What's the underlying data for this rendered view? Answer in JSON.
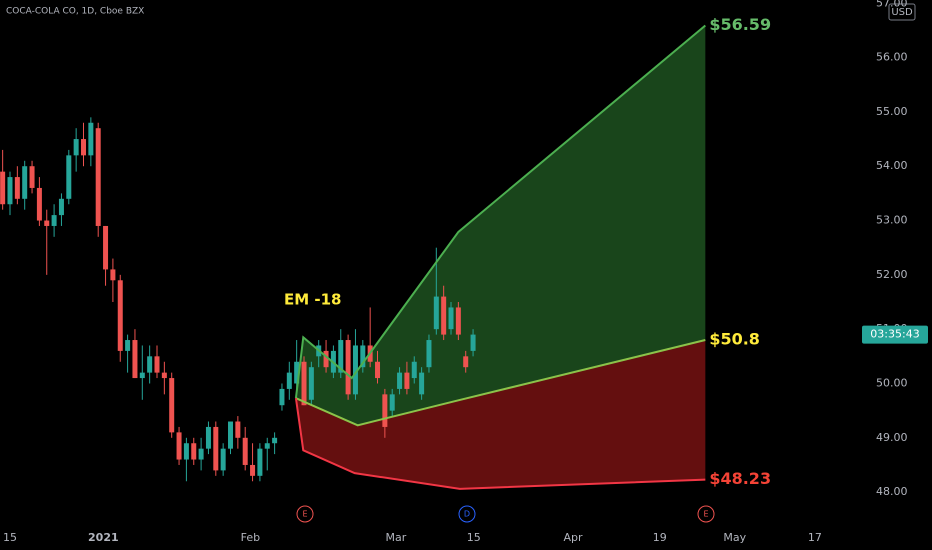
{
  "chart_data": {
    "type": "candlestick",
    "title": "COCA-COLA CO, 1D, Cboe BZX",
    "currency": "USD",
    "annotation": "EM -18",
    "countdown": "03:35:43",
    "events": [
      "E",
      "D",
      "E"
    ],
    "up_color": "#26a69a",
    "down_color": "#ef5350",
    "x": [
      -1,
      0,
      1,
      2,
      3,
      4,
      5,
      6,
      7,
      8,
      9,
      10,
      11,
      12,
      13,
      14,
      15,
      16,
      17,
      18,
      19,
      20,
      21,
      22,
      23,
      24,
      25,
      26,
      27,
      28,
      29,
      30,
      31,
      32,
      33,
      34,
      35,
      36,
      37,
      38,
      39,
      40,
      41,
      42,
      43,
      44,
      45,
      46,
      47,
      48,
      49,
      50,
      51,
      52,
      53,
      54,
      55,
      56,
      57,
      58,
      59,
      60,
      61,
      62,
      63
    ],
    "open": [
      53.9,
      53.3,
      53.8,
      53.4,
      54.0,
      53.6,
      53.0,
      52.9,
      53.1,
      53.4,
      54.2,
      54.5,
      54.2,
      54.7,
      52.9,
      52.1,
      51.9,
      50.6,
      50.8,
      50.1,
      50.2,
      50.5,
      50.2,
      50.1,
      49.1,
      48.6,
      48.9,
      48.6,
      48.8,
      49.2,
      48.4,
      48.8,
      49.3,
      49.0,
      48.5,
      48.3,
      48.8,
      48.9,
      49.6,
      49.9,
      50.0,
      50.4,
      49.7,
      50.5,
      50.6,
      50.2,
      50.2,
      50.8,
      49.8,
      50.3,
      50.7,
      50.4,
      49.8,
      49.5,
      49.9,
      50.2,
      50.1,
      49.8,
      50.3,
      51.0,
      51.6,
      51.0,
      51.4,
      50.5,
      50.6
    ],
    "high": [
      54.3,
      53.9,
      54.0,
      54.1,
      54.1,
      53.8,
      53.2,
      53.3,
      53.5,
      54.3,
      54.7,
      54.8,
      54.9,
      54.8,
      52.9,
      52.3,
      52.0,
      50.9,
      51.0,
      50.7,
      50.7,
      50.7,
      50.4,
      50.2,
      49.2,
      49.0,
      49.0,
      49.0,
      49.3,
      49.3,
      48.9,
      49.3,
      49.4,
      49.2,
      48.9,
      48.9,
      49.0,
      49.1,
      50.0,
      50.4,
      50.8,
      50.5,
      50.4,
      50.8,
      50.8,
      50.7,
      51.0,
      50.9,
      51.0,
      50.8,
      51.4,
      50.6,
      49.9,
      49.9,
      50.3,
      50.4,
      50.5,
      50.3,
      50.9,
      52.5,
      51.8,
      51.5,
      51.5,
      50.6,
      51.0
    ],
    "low": [
      53.2,
      53.1,
      53.3,
      53.2,
      53.5,
      52.9,
      52.0,
      52.7,
      52.9,
      53.3,
      53.9,
      54.0,
      54.0,
      52.7,
      51.8,
      51.5,
      50.4,
      50.2,
      50.1,
      49.7,
      50.0,
      50.1,
      49.8,
      49.0,
      48.5,
      48.2,
      48.5,
      48.4,
      48.7,
      48.3,
      48.3,
      48.7,
      48.8,
      48.4,
      48.2,
      48.2,
      48.4,
      48.7,
      49.5,
      49.7,
      49.9,
      49.6,
      49.6,
      50.3,
      50.2,
      50.1,
      50.1,
      49.7,
      49.7,
      50.2,
      50.3,
      50.0,
      49.0,
      49.4,
      49.8,
      49.8,
      50.0,
      49.7,
      50.2,
      50.9,
      50.8,
      50.9,
      50.8,
      50.2,
      50.5
    ],
    "close": [
      53.3,
      53.8,
      53.4,
      54.0,
      53.6,
      53.0,
      52.9,
      53.1,
      53.4,
      54.2,
      54.5,
      54.2,
      54.8,
      52.9,
      52.1,
      51.9,
      50.6,
      50.8,
      50.1,
      50.2,
      50.5,
      50.2,
      50.1,
      49.1,
      48.6,
      48.9,
      48.6,
      48.8,
      49.2,
      48.4,
      48.8,
      49.3,
      49.0,
      48.5,
      48.3,
      48.8,
      48.9,
      49.0,
      49.9,
      50.2,
      50.4,
      49.6,
      50.3,
      50.7,
      50.3,
      50.6,
      50.8,
      49.8,
      50.7,
      50.7,
      50.4,
      50.1,
      49.2,
      49.8,
      50.2,
      49.9,
      50.4,
      50.2,
      50.8,
      51.6,
      50.9,
      51.4,
      50.9,
      50.3,
      50.9
    ],
    "overlays": [
      {
        "color": "#4caf50",
        "label_color": "#66bb6a",
        "x": [
          38.9,
          39.9,
          46.5,
          61.0,
          94.6
        ],
        "values": [
          49.73,
          50.85,
          50.1,
          52.79,
          56.59
        ],
        "value_labels": [
          null,
          null,
          null,
          null,
          "$56.59"
        ]
      },
      {
        "color": "#8bc34a",
        "label_color": "#ffeb3b",
        "x": [
          38.9,
          47.3,
          61.0,
          94.6
        ],
        "values": [
          49.73,
          49.23,
          49.69,
          50.8
        ],
        "value_labels": [
          null,
          null,
          null,
          "$50.8"
        ]
      },
      {
        "color": "#f23645",
        "label_color": "#f44336",
        "x": [
          38.9,
          39.9,
          46.9,
          61.2,
          94.6
        ],
        "values": [
          49.73,
          48.77,
          48.35,
          48.06,
          48.23
        ],
        "value_labels": [
          null,
          null,
          null,
          null,
          "$48.23"
        ]
      }
    ],
    "xlim": [
      -1.36,
      115.37
    ],
    "xticks": [
      {
        "value": 0,
        "label": "15"
      },
      {
        "value": 12.7,
        "label": "2021"
      },
      {
        "value": 32.7,
        "label": "Feb"
      },
      {
        "value": 52.5,
        "label": "Mar"
      },
      {
        "value": 63.1,
        "label": "15"
      },
      {
        "value": 76.6,
        "label": "Apr"
      },
      {
        "value": 88.4,
        "label": "19"
      },
      {
        "value": 98.6,
        "label": "May"
      },
      {
        "value": 109.5,
        "label": "17"
      }
    ],
    "ylim": [
      47.45,
      57.06
    ],
    "yticks": [
      {
        "value": 48,
        "label": "48.00"
      },
      {
        "value": 49,
        "label": "49.00"
      },
      {
        "value": 50,
        "label": "50.00"
      },
      {
        "value": 51,
        "label": "51.00"
      },
      {
        "value": 52,
        "label": "52.00"
      },
      {
        "value": 53,
        "label": "53.00"
      },
      {
        "value": 54,
        "label": "54.00"
      },
      {
        "value": 55,
        "label": "55.00"
      },
      {
        "value": 56,
        "label": "56.00"
      },
      {
        "value": 57,
        "label": "57.00"
      }
    ],
    "grid": false
  }
}
